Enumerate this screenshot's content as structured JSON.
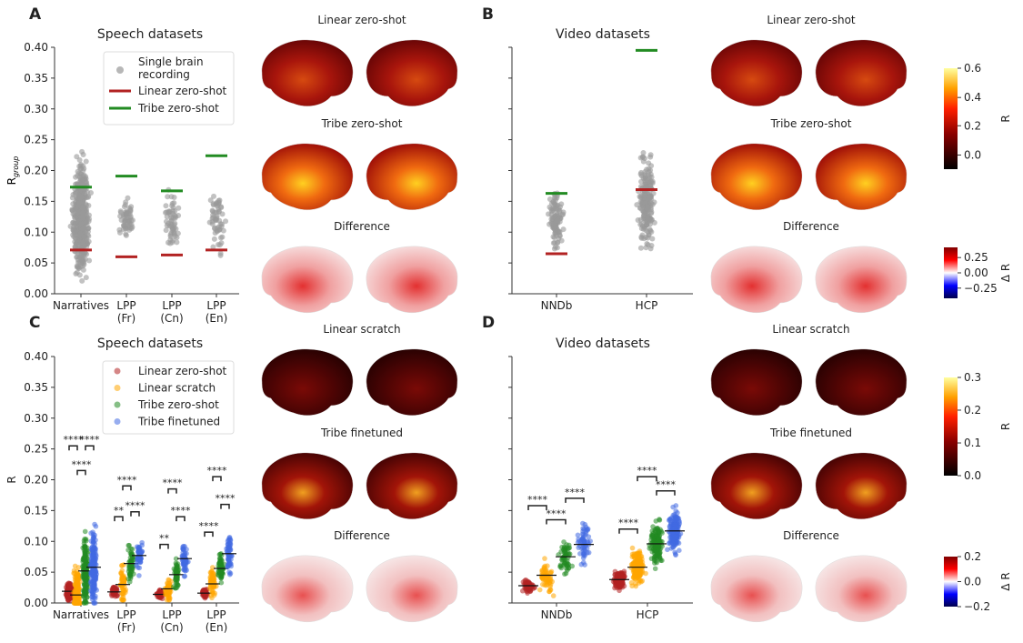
{
  "panels": {
    "A": {
      "label": "A",
      "title": "Speech datasets"
    },
    "B": {
      "label": "B",
      "title": "Video datasets"
    },
    "C": {
      "label": "C",
      "title": "Speech datasets"
    },
    "D": {
      "label": "D",
      "title": "Video datasets"
    }
  },
  "brain_titles": {
    "top": [
      "Linear zero-shot",
      "Tribe zero-shot",
      "Difference"
    ],
    "bottom": [
      "Linear scratch",
      "Tribe finetuned",
      "Difference"
    ]
  },
  "colors": {
    "single": "#999999",
    "linear_zero_shot_line": "#b22222",
    "tribe_zero_shot_line": "#228b22",
    "series": [
      "#b22222",
      "#ffa500",
      "#228b22",
      "#4169e1"
    ]
  },
  "colorbars": {
    "top_R": {
      "label": "R",
      "ticks": [
        "0.6",
        "0.4",
        "0.2",
        "0.0"
      ],
      "range": [
        -0.1,
        0.6
      ],
      "colormap": "hot"
    },
    "top_dR": {
      "label": "Δ R",
      "ticks": [
        "0.25",
        "0.00",
        "−0.25"
      ],
      "range": [
        -0.35,
        0.35
      ],
      "colormap": "seismic"
    },
    "bottom_R": {
      "label": "R",
      "ticks": [
        "0.3",
        "0.2",
        "0.1",
        "0.0"
      ],
      "range": [
        0,
        0.3
      ],
      "colormap": "hot"
    },
    "bottom_dR": {
      "label": "Δ R",
      "ticks": [
        "0.2",
        "0.0",
        "−0.2"
      ],
      "range": [
        -0.2,
        0.2
      ],
      "colormap": "seismic"
    }
  },
  "chart_data": [
    {
      "panel": "A",
      "type": "scatter",
      "title": "Speech datasets",
      "ylabel": "R_group",
      "ylim": [
        0,
        0.4
      ],
      "yticks": [
        "0.00",
        "0.05",
        "0.10",
        "0.15",
        "0.20",
        "0.25",
        "0.30",
        "0.35",
        "0.40"
      ],
      "categories": [
        "Narratives",
        "LPP (Fr)",
        "LPP (Cn)",
        "LPP (En)"
      ],
      "legend": [
        "Single brain recording",
        "Linear zero-shot",
        "Tribe zero-shot"
      ],
      "legend_placement": "top-right",
      "points_range": [
        [
          0.0,
          0.245
        ],
        [
          0.075,
          0.17
        ],
        [
          0.055,
          0.182
        ],
        [
          0.043,
          0.193
        ]
      ],
      "linear_zero_shot": [
        0.071,
        0.06,
        0.063,
        0.071
      ],
      "tribe_zero_shot": [
        0.173,
        0.191,
        0.167,
        0.224
      ]
    },
    {
      "panel": "B",
      "type": "scatter",
      "title": "Video datasets",
      "ylim": [
        0,
        0.4
      ],
      "categories": [
        "NNDb",
        "HCP"
      ],
      "points_range": [
        [
          0.05,
          0.19
        ],
        [
          0.04,
          0.26
        ]
      ],
      "linear_zero_shot": [
        0.065,
        0.169
      ],
      "tribe_zero_shot": [
        0.163,
        0.395
      ]
    },
    {
      "panel": "C",
      "type": "scatter",
      "title": "Speech datasets",
      "ylabel": "R",
      "ylim": [
        0,
        0.4
      ],
      "yticks": [
        "0.00",
        "0.05",
        "0.10",
        "0.15",
        "0.20",
        "0.25",
        "0.30",
        "0.35",
        "0.40"
      ],
      "categories": [
        "Narratives",
        "LPP (Fr)",
        "LPP (Cn)",
        "LPP (En)"
      ],
      "legend_placement": "top-right",
      "series": [
        {
          "name": "Linear zero-shot",
          "median": [
            0.019,
            0.018,
            0.014,
            0.016
          ],
          "range": [
            [
              0.0,
              0.05
            ],
            [
              0.005,
              0.035
            ],
            [
              0.005,
              0.027
            ],
            [
              0.005,
              0.028
            ]
          ]
        },
        {
          "name": "Linear scratch",
          "median": [
            0.013,
            0.03,
            0.023,
            0.031
          ],
          "range": [
            [
              0.0,
              0.146
            ],
            [
              0.005,
              0.115
            ],
            [
              0.005,
              0.068
            ],
            [
              0.005,
              0.085
            ]
          ]
        },
        {
          "name": "Tribe zero-shot",
          "median": [
            0.052,
            0.064,
            0.046,
            0.056
          ],
          "range": [
            [
              0.0,
              0.19
            ],
            [
              0.025,
              0.113
            ],
            [
              0.01,
              0.085
            ],
            [
              0.02,
              0.09
            ]
          ]
        },
        {
          "name": "Tribe finetuned",
          "median": [
            0.058,
            0.077,
            0.072,
            0.08
          ],
          "range": [
            [
              0.0,
              0.2
            ],
            [
              0.04,
              0.12
            ],
            [
              0.03,
              0.113
            ],
            [
              0.025,
              0.133
            ]
          ]
        }
      ],
      "significance": [
        [
          {
            "pair": [
              0,
              1
            ],
            "y": 0.255,
            "label": "****"
          },
          {
            "pair": [
              2,
              3
            ],
            "y": 0.255,
            "label": "****"
          },
          {
            "pair": [
              1,
              2
            ],
            "y": 0.215,
            "label": "****"
          }
        ],
        [
          {
            "pair": [
              0,
              1
            ],
            "y": 0.14,
            "label": "**"
          },
          {
            "pair": [
              2,
              3
            ],
            "y": 0.148,
            "label": "****"
          },
          {
            "pair": [
              1,
              2
            ],
            "y": 0.19,
            "label": "****"
          }
        ],
        [
          {
            "pair": [
              0,
              1
            ],
            "y": 0.095,
            "label": "**"
          },
          {
            "pair": [
              2,
              3
            ],
            "y": 0.14,
            "label": "****"
          },
          {
            "pair": [
              1,
              2
            ],
            "y": 0.185,
            "label": "****"
          }
        ],
        [
          {
            "pair": [
              0,
              1
            ],
            "y": 0.115,
            "label": "****"
          },
          {
            "pair": [
              2,
              3
            ],
            "y": 0.16,
            "label": "****"
          },
          {
            "pair": [
              1,
              2
            ],
            "y": 0.205,
            "label": "****"
          }
        ]
      ]
    },
    {
      "panel": "D",
      "type": "scatter",
      "title": "Video datasets",
      "ylim": [
        0,
        0.4
      ],
      "categories": [
        "NNDb",
        "HCP"
      ],
      "series": [
        {
          "name": "Linear zero-shot",
          "median": [
            0.028,
            0.038
          ],
          "range": [
            [
              0.01,
              0.046
            ],
            [
              0.012,
              0.061
            ]
          ]
        },
        {
          "name": "Linear scratch",
          "median": [
            0.045,
            0.058
          ],
          "range": [
            [
              0.005,
              0.098
            ],
            [
              0.017,
              0.108
            ]
          ]
        },
        {
          "name": "Tribe zero-shot",
          "median": [
            0.075,
            0.096
          ],
          "range": [
            [
              0.027,
              0.123
            ],
            [
              0.022,
              0.142
            ]
          ]
        },
        {
          "name": "Tribe finetuned",
          "median": [
            0.095,
            0.117
          ],
          "range": [
            [
              0.03,
              0.162
            ],
            [
              0.054,
              0.172
            ]
          ]
        }
      ],
      "significance": [
        [
          {
            "pair": [
              0,
              1
            ],
            "y": 0.158,
            "label": "****"
          },
          {
            "pair": [
              1,
              2
            ],
            "y": 0.135,
            "label": "****"
          },
          {
            "pair": [
              2,
              3
            ],
            "y": 0.17,
            "label": "****"
          }
        ],
        [
          {
            "pair": [
              0,
              1
            ],
            "y": 0.12,
            "label": "****"
          },
          {
            "pair": [
              1,
              2
            ],
            "y": 0.205,
            "label": "****"
          },
          {
            "pair": [
              2,
              3
            ],
            "y": 0.182,
            "label": "****"
          }
        ]
      ]
    }
  ]
}
